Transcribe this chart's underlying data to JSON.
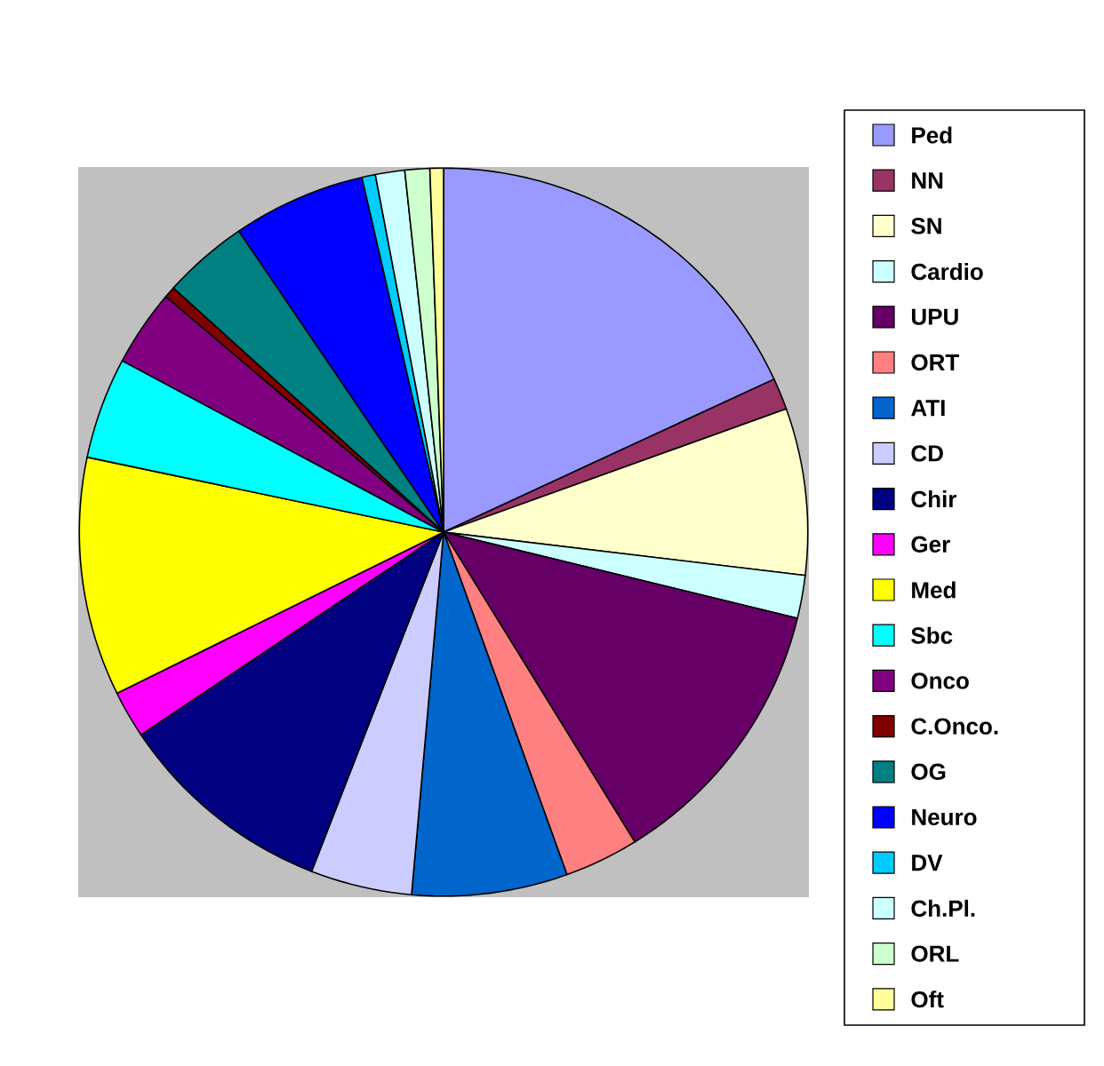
{
  "chart_data": {
    "type": "pie",
    "legend": "right",
    "categories": [
      "Ped",
      "NN",
      "SN",
      "Cardio",
      "UPU",
      "ORT",
      "ATI",
      "CD",
      "Chir",
      "Ger",
      "Med",
      "Sbc",
      "Onco",
      "C.Onco.",
      "OG",
      "Neuro",
      "DV",
      "Ch.Pl.",
      "ORL",
      "Oft"
    ],
    "values": [
      18.1,
      1.4,
      7.4,
      1.9,
      12.4,
      3.3,
      6.9,
      4.5,
      9.7,
      2.1,
      10.6,
      4.5,
      3.4,
      0.5,
      3.8,
      5.9,
      0.6,
      1.3,
      1.1,
      0.6
    ],
    "colors": [
      "#9999ff",
      "#993366",
      "#ffffcc",
      "#ccffff",
      "#660066",
      "#ff8080",
      "#0066cc",
      "#ccccff",
      "#000080",
      "#ff00ff",
      "#ffff00",
      "#00ffff",
      "#800080",
      "#800000",
      "#008080",
      "#0000ff",
      "#00ccff",
      "#ccffff",
      "#ccffcc",
      "#ffff99"
    ]
  }
}
